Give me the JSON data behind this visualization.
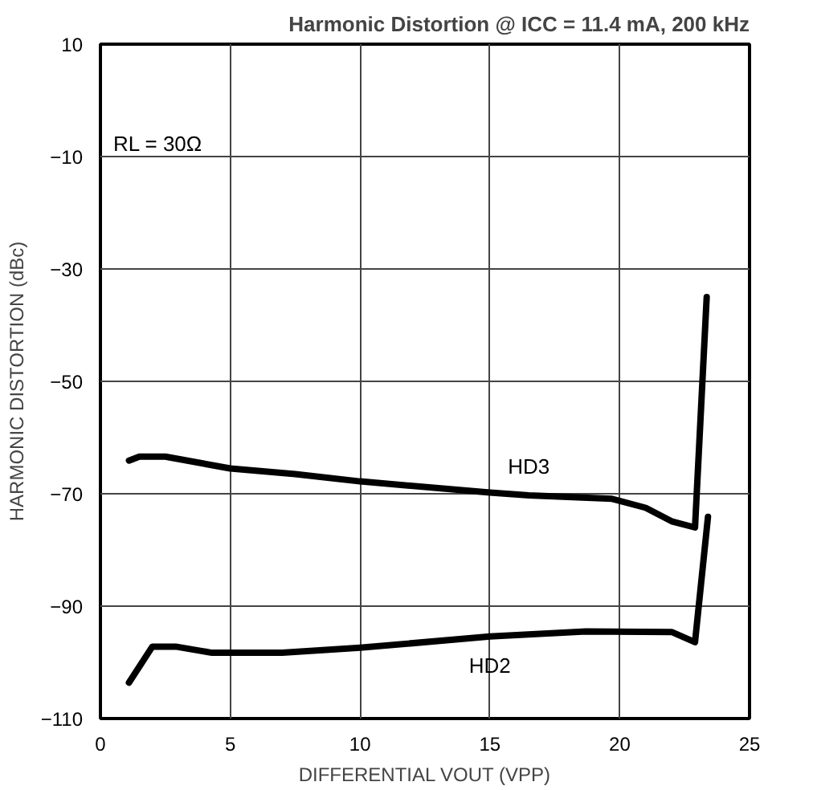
{
  "chart_data": {
    "type": "line",
    "title": "Harmonic Distortion @ ICC = 11.4 mA, 200 kHz",
    "xlabel": "DIFFERENTIAL VOUT (VPP)",
    "ylabel": "HARMONIC DISTORTION (dBc)",
    "series": [
      {
        "name": "HD3",
        "color": "#000000",
        "x": [
          1.1,
          1.5,
          2.5,
          5,
          7.5,
          10,
          15,
          16.5,
          19.7,
          21,
          22,
          22.9,
          23.35
        ],
        "values": [
          -64.1,
          -63.4,
          -63.4,
          -65.5,
          -66.5,
          -67.8,
          -69.8,
          -70.3,
          -70.9,
          -72.5,
          -74.9,
          -76,
          -35
        ]
      },
      {
        "name": "HD2",
        "color": "#000000",
        "x": [
          1.1,
          2.0,
          2.9,
          4.3,
          7,
          10,
          15,
          18.7,
          22,
          22.9,
          23.4
        ],
        "values": [
          -103.6,
          -97.2,
          -97.2,
          -98.3,
          -98.3,
          -97.4,
          -95.4,
          -94.5,
          -94.6,
          -96.4,
          -74.1
        ]
      }
    ],
    "annotations": [
      "RL = 30Ω"
    ],
    "xlim": [
      0,
      25
    ],
    "ylim": [
      -110,
      10
    ],
    "xticks": [
      0,
      5,
      10,
      15,
      20,
      25
    ],
    "yticks": [
      10,
      -10,
      -30,
      -50,
      -70,
      -90,
      -110
    ],
    "grid": true,
    "marker": "none",
    "line_style": "solid"
  }
}
